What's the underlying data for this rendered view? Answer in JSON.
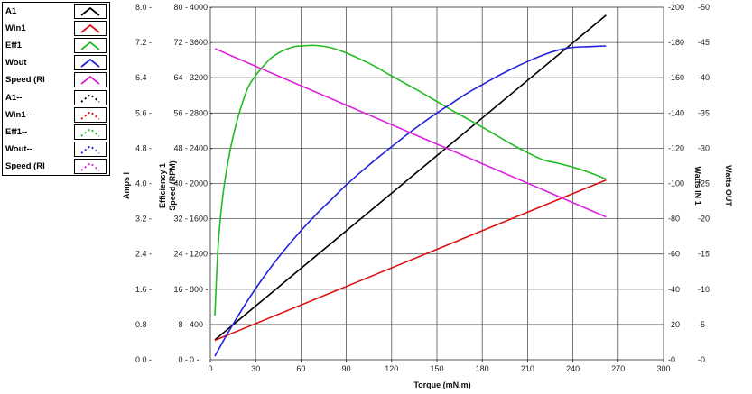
{
  "chart_data": {
    "type": "line",
    "xlabel": "Torque (mN.m)",
    "xlim": [
      0,
      300
    ],
    "x_ticks": [
      "0",
      "30",
      "60",
      "90",
      "120",
      "150",
      "180",
      "210",
      "240",
      "270",
      "300"
    ],
    "left_axes": [
      {
        "label": "Amps I",
        "ticks": [
          "0.0",
          "0.8",
          "1.6",
          "2.4",
          "3.2",
          "4.0",
          "4.8",
          "5.6",
          "6.4",
          "7.2",
          "8.0"
        ]
      },
      {
        "label": "Efficiency 1",
        "ticks": [
          "0",
          "8",
          "16",
          "24",
          "32",
          "40",
          "48",
          "56",
          "64",
          "72",
          "80"
        ]
      },
      {
        "label": "Speed (RPM)",
        "ticks": [
          "0",
          "400",
          "800",
          "1200",
          "1600",
          "2000",
          "2400",
          "2800",
          "3200",
          "3600",
          "4000"
        ]
      }
    ],
    "right_axes": [
      {
        "label": "Watts IN 1",
        "ticks": [
          "0",
          "20",
          "40",
          "60",
          "80",
          "100",
          "120",
          "140",
          "160",
          "180",
          "200"
        ]
      },
      {
        "label": "Watts OUT",
        "ticks": [
          "0",
          "5",
          "10",
          "15",
          "20",
          "25",
          "30",
          "35",
          "40",
          "45",
          "50"
        ]
      }
    ],
    "legend": [
      {
        "name": "A1",
        "color": "#000000",
        "dashed": false
      },
      {
        "name": "Win1",
        "color": "#dd1111",
        "dashed": false
      },
      {
        "name": "Eff1",
        "color": "#22bb22",
        "dashed": false
      },
      {
        "name": "Wout",
        "color": "#2222dd",
        "dashed": false
      },
      {
        "name": "Speed (RI",
        "color": "#dd22dd",
        "dashed": false
      },
      {
        "name": "A1--",
        "color": "#000000",
        "dashed": true
      },
      {
        "name": "Win1--",
        "color": "#dd1111",
        "dashed": true
      },
      {
        "name": "Eff1--",
        "color": "#22bb22",
        "dashed": true
      },
      {
        "name": "Wout--",
        "color": "#2222dd",
        "dashed": true
      },
      {
        "name": "Speed (RI",
        "color": "#dd22dd",
        "dashed": true
      }
    ],
    "series": [
      {
        "name": "A1",
        "color": "#000000",
        "axis": "Amps I",
        "x": [
          3,
          262
        ],
        "y": [
          0.45,
          7.82
        ]
      },
      {
        "name": "Win1",
        "color": "#dd1111",
        "axis": "Watts IN 1",
        "x": [
          3,
          262
        ],
        "y": [
          11,
          102
        ]
      },
      {
        "name": "Eff1",
        "color": "#22bb22",
        "axis": "Efficiency 1",
        "x": [
          3,
          5,
          8,
          12,
          16,
          20,
          25,
          30,
          35,
          40,
          45,
          50,
          55,
          60,
          65,
          70,
          80,
          90,
          100,
          110,
          120,
          130,
          140,
          150,
          160,
          170,
          180,
          190,
          200,
          210,
          220,
          230,
          240,
          250,
          262
        ],
        "y": [
          10,
          25,
          36.5,
          45.5,
          52,
          57,
          61.8,
          64.5,
          66.6,
          68.4,
          69.6,
          70.4,
          71,
          71.2,
          71.3,
          71.3,
          70.8,
          69.6,
          68.1,
          66.4,
          64.4,
          62.5,
          60.6,
          58.6,
          56.6,
          54.7,
          52.8,
          50.8,
          48.8,
          47,
          45.4,
          44.6,
          43.7,
          42.6,
          41
        ]
      },
      {
        "name": "Wout",
        "color": "#2222dd",
        "axis": "Watts OUT",
        "x": [
          3,
          10,
          20,
          30,
          40,
          50,
          60,
          70,
          80,
          90,
          100,
          110,
          120,
          130,
          140,
          150,
          160,
          170,
          180,
          190,
          200,
          210,
          220,
          230,
          240,
          250,
          262
        ],
        "y": [
          0.5,
          3.2,
          6.8,
          10.1,
          13.1,
          15.8,
          18.3,
          20.6,
          22.7,
          24.8,
          26.7,
          28.5,
          30.2,
          31.9,
          33.5,
          35.0,
          36.4,
          37.8,
          39.0,
          40.2,
          41.3,
          42.3,
          43.2,
          43.9,
          44.3,
          44.4,
          44.5
        ]
      },
      {
        "name": "Speed (RPM)",
        "color": "#dd22dd",
        "axis": "Speed (RPM)",
        "x": [
          3,
          262
        ],
        "y": [
          3530,
          1620
        ]
      }
    ]
  }
}
